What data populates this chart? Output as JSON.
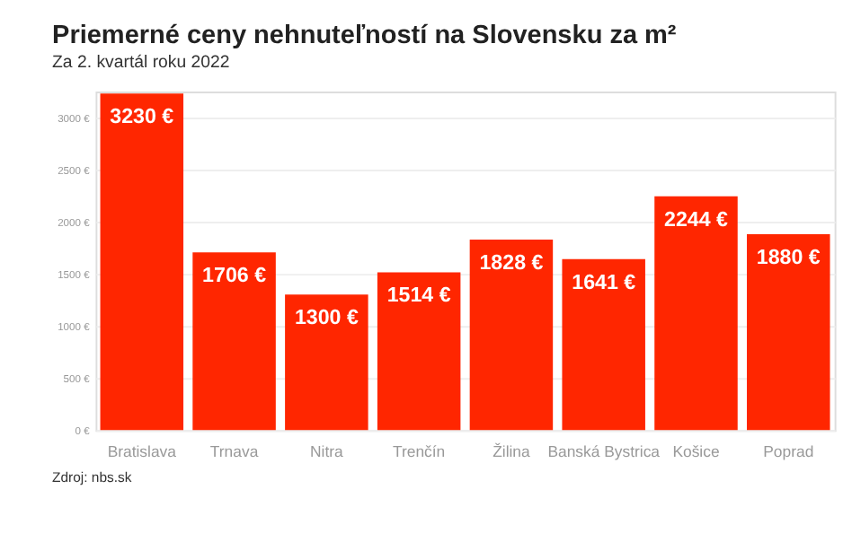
{
  "chart_data": {
    "type": "bar",
    "title": "Priemerné ceny nehnuteľností na Slovensku za m²",
    "subtitle": "Za 2. kvartál roku 2022",
    "categories": [
      "Bratislava",
      "Trnava",
      "Nitra",
      "Trenčín",
      "Žilina",
      "Banská Bystrica",
      "Košice",
      "Poprad"
    ],
    "values": [
      3230,
      1706,
      1300,
      1514,
      1828,
      1641,
      2244,
      1880
    ],
    "value_labels": [
      "3230 €",
      "1706 €",
      "1300 €",
      "1514 €",
      "1828 €",
      "1641 €",
      "2244 €",
      "1880 €"
    ],
    "color": "#ff2600",
    "ylim": [
      0,
      3250
    ],
    "yticks": [
      {
        "value": 0,
        "label": "0 €"
      },
      {
        "value": 500,
        "label": "500 €"
      },
      {
        "value": 1000,
        "label": "1000 €"
      },
      {
        "value": 1500,
        "label": "1500 €"
      },
      {
        "value": 2000,
        "label": "2000 €"
      },
      {
        "value": 2500,
        "label": "2500 €"
      },
      {
        "value": 3000,
        "label": "3000 €"
      }
    ],
    "grid": "y",
    "annotations": [
      "Zdroj: nbs.sk"
    ]
  }
}
